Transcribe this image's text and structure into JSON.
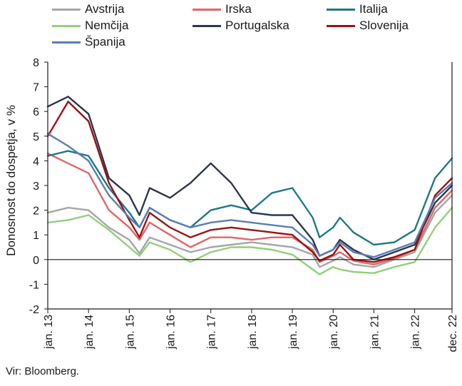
{
  "chart_data": {
    "type": "line",
    "ylabel": "Donosnost do dospetja, v %",
    "ylim": [
      -2,
      8
    ],
    "yticks": [
      "-2",
      "-1",
      "0",
      "1",
      "2",
      "3",
      "4",
      "5",
      "6",
      "7",
      "8"
    ],
    "xlim": [
      "2013-01",
      "2022-12"
    ],
    "xticks": [
      {
        "x": "2013-01",
        "label": "jan. 13"
      },
      {
        "x": "2014-01",
        "label": "jan. 14"
      },
      {
        "x": "2015-01",
        "label": "jan. 15"
      },
      {
        "x": "2016-01",
        "label": "jan. 16"
      },
      {
        "x": "2017-01",
        "label": "jan. 17"
      },
      {
        "x": "2018-01",
        "label": "jan. 18"
      },
      {
        "x": "2019-01",
        "label": "jan. 19"
      },
      {
        "x": "2020-01",
        "label": "jan. 20"
      },
      {
        "x": "2021-01",
        "label": "jan. 21"
      },
      {
        "x": "2022-01",
        "label": "jan. 22"
      },
      {
        "x": "2022-12",
        "label": "dec. 22"
      }
    ],
    "grid": false,
    "legend_position": "top",
    "x": [
      "2013-01",
      "2013-07",
      "2014-01",
      "2014-07",
      "2015-01",
      "2015-04",
      "2015-07",
      "2016-01",
      "2016-07",
      "2017-01",
      "2017-07",
      "2018-01",
      "2018-07",
      "2019-01",
      "2019-07",
      "2019-09",
      "2020-01",
      "2020-03",
      "2020-07",
      "2021-01",
      "2021-07",
      "2022-01",
      "2022-07",
      "2022-12"
    ],
    "series": [
      {
        "name": "Avstrija",
        "color": "#a6a6a6",
        "values": [
          1.9,
          2.1,
          2.0,
          1.3,
          0.8,
          0.25,
          0.9,
          0.6,
          0.3,
          0.5,
          0.6,
          0.7,
          0.6,
          0.5,
          0.2,
          -0.3,
          -0.05,
          0.1,
          -0.2,
          -0.3,
          0.0,
          0.3,
          1.9,
          2.6
        ]
      },
      {
        "name": "Irska",
        "color": "#e06666",
        "values": [
          4.3,
          3.9,
          3.5,
          2.0,
          1.3,
          0.8,
          1.5,
          1.0,
          0.5,
          0.9,
          0.9,
          0.8,
          0.9,
          0.9,
          0.4,
          -0.1,
          0.15,
          0.3,
          -0.05,
          -0.2,
          0.05,
          0.4,
          2.1,
          2.8
        ]
      },
      {
        "name": "Italija",
        "color": "#1e7888",
        "values": [
          4.2,
          4.4,
          4.2,
          2.9,
          1.9,
          1.3,
          2.1,
          1.6,
          1.3,
          2.0,
          2.2,
          2.0,
          2.7,
          2.9,
          1.7,
          0.9,
          1.3,
          1.7,
          1.1,
          0.6,
          0.7,
          1.2,
          3.3,
          4.1
        ]
      },
      {
        "name": "Nemčija",
        "color": "#92cf7a",
        "values": [
          1.5,
          1.6,
          1.8,
          1.2,
          0.5,
          0.15,
          0.7,
          0.4,
          -0.1,
          0.3,
          0.5,
          0.5,
          0.4,
          0.2,
          -0.4,
          -0.6,
          -0.3,
          -0.4,
          -0.5,
          -0.55,
          -0.3,
          -0.1,
          1.3,
          2.1
        ]
      },
      {
        "name": "Portugalska",
        "color": "#2b3650",
        "values": [
          6.2,
          6.6,
          5.9,
          3.3,
          2.6,
          1.8,
          2.9,
          2.5,
          3.1,
          3.9,
          3.1,
          1.9,
          1.8,
          1.8,
          0.8,
          0.15,
          0.4,
          0.8,
          0.4,
          0.0,
          0.3,
          0.6,
          2.3,
          3.0
        ]
      },
      {
        "name": "Slovenija",
        "color": "#9b1212",
        "values": [
          5.0,
          6.4,
          5.6,
          3.1,
          1.6,
          0.9,
          1.9,
          1.3,
          0.9,
          1.2,
          1.3,
          1.2,
          1.1,
          1.0,
          0.3,
          -0.05,
          0.2,
          0.6,
          0.0,
          -0.1,
          0.1,
          0.4,
          2.6,
          3.3
        ]
      },
      {
        "name": "Španija",
        "color": "#5b7fae",
        "values": [
          5.1,
          4.6,
          4.0,
          2.6,
          1.7,
          1.3,
          2.1,
          1.6,
          1.3,
          1.5,
          1.6,
          1.5,
          1.4,
          1.3,
          0.6,
          0.15,
          0.4,
          0.7,
          0.3,
          0.1,
          0.4,
          0.7,
          2.5,
          3.1
        ]
      }
    ]
  },
  "source": "Vir: Bloomberg."
}
